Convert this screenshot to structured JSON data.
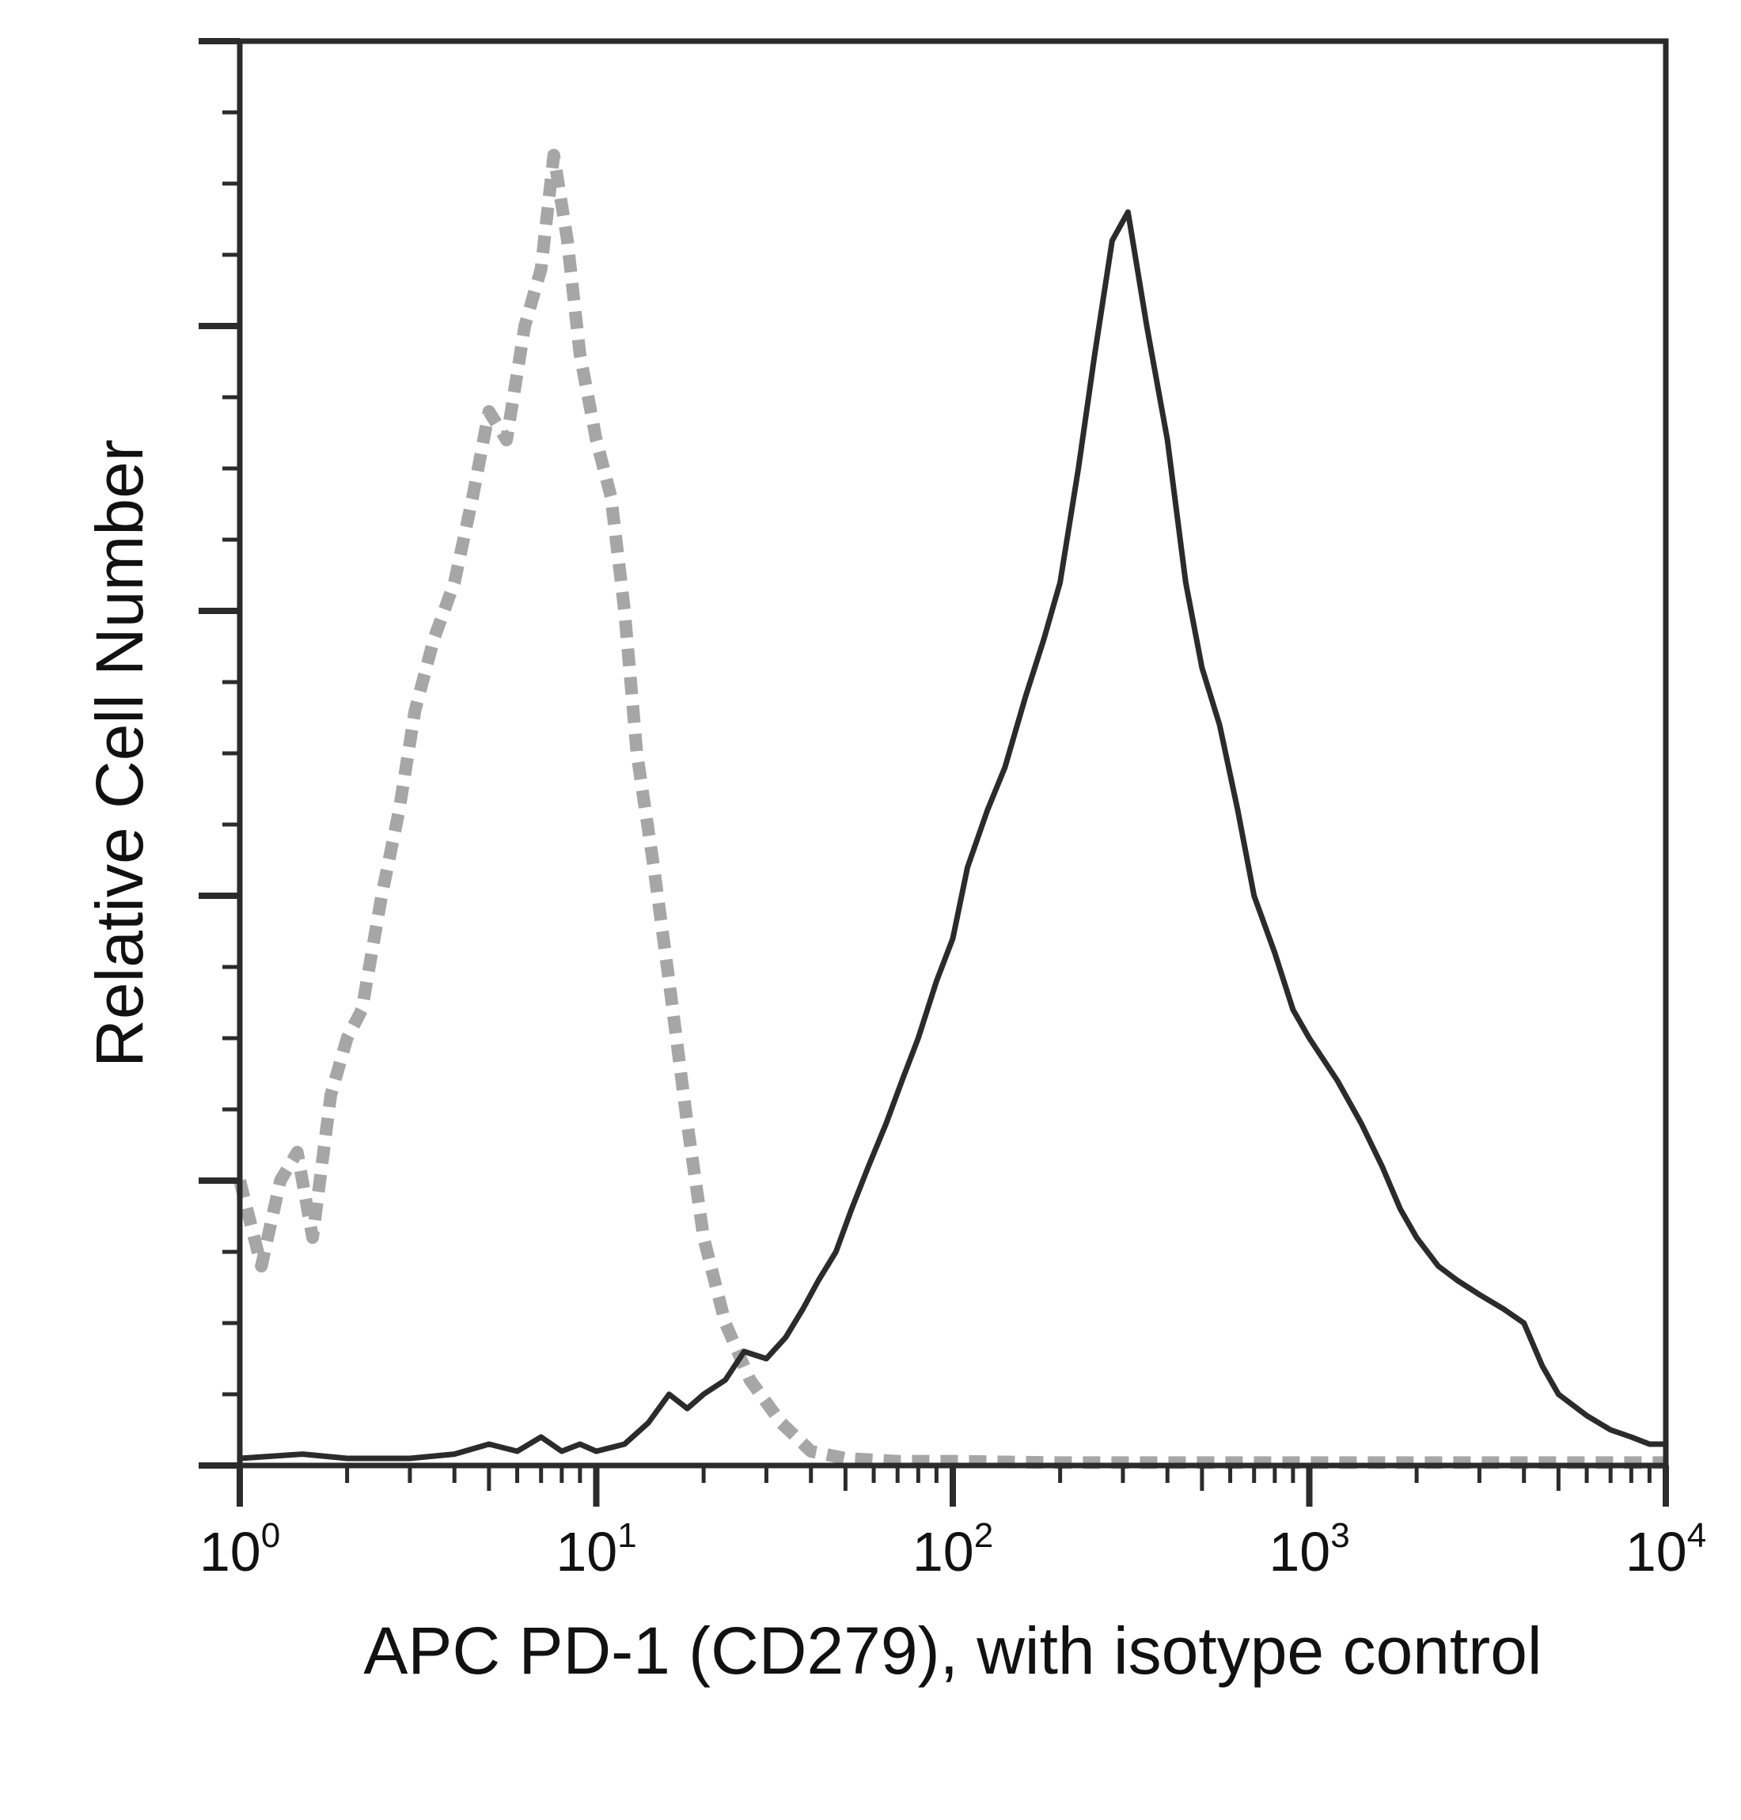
{
  "chart_data": {
    "type": "line",
    "xlabel": "APC PD-1 (CD279), with isotype control",
    "ylabel": "Relative Cell Number",
    "x_scale": "log",
    "xlim": [
      1,
      10000
    ],
    "ylim": [
      0,
      100
    ],
    "x_ticks": [
      {
        "base": "10",
        "exp": "0",
        "value": 1
      },
      {
        "base": "10",
        "exp": "1",
        "value": 10
      },
      {
        "base": "10",
        "exp": "2",
        "value": 100
      },
      {
        "base": "10",
        "exp": "3",
        "value": 1000
      },
      {
        "base": "10",
        "exp": "4",
        "value": 10000
      }
    ],
    "y_major_ticks": [
      0,
      20,
      40,
      60,
      80,
      100
    ],
    "grid": false,
    "series": [
      {
        "style": "dashed",
        "color": "#a6a6a6",
        "x": [
          1.0,
          1.15,
          1.3,
          1.45,
          1.6,
          1.8,
          2.0,
          2.2,
          2.5,
          2.8,
          3.1,
          3.5,
          4.0,
          4.5,
          5.0,
          5.6,
          6.3,
          7.0,
          7.6,
          8.3,
          9.0,
          10.0,
          11.0,
          12.0,
          13.0,
          14.5,
          16.0,
          18.0,
          20.0,
          23.0,
          27.0,
          33.0,
          40.0,
          50.0,
          70.0,
          100.0,
          200.0,
          500.0,
          1000.0,
          3000.0,
          10000.0
        ],
        "values": [
          20,
          14,
          20,
          22,
          16,
          26,
          30,
          32,
          40,
          46,
          53,
          58,
          62,
          68,
          74,
          72,
          80,
          84,
          92,
          86,
          78,
          72,
          68,
          60,
          50,
          42,
          34,
          24,
          16,
          10,
          6,
          3,
          1,
          0.5,
          0.3,
          0.3,
          0.2,
          0.2,
          0.2,
          0.2,
          0.2
        ]
      },
      {
        "style": "solid",
        "color": "#2b2b2b",
        "x": [
          1.0,
          1.5,
          2.0,
          3.0,
          4.0,
          5.0,
          6.0,
          7.0,
          8.0,
          9.0,
          10.0,
          12.0,
          14.0,
          16.0,
          18.0,
          20.0,
          23.0,
          26.0,
          30.0,
          34.0,
          38.0,
          42.0,
          47.0,
          52.0,
          58.0,
          65.0,
          72.0,
          80.0,
          90.0,
          100.0,
          110.0,
          125.0,
          140.0,
          160.0,
          180.0,
          200.0,
          225.0,
          250.0,
          280.0,
          310.0,
          350.0,
          400.0,
          450.0,
          500.0,
          560.0,
          630.0,
          700.0,
          800.0,
          900.0,
          1000.0,
          1200.0,
          1400.0,
          1600.0,
          1800.0,
          2000.0,
          2300.0,
          2600.0,
          3000.0,
          3500.0,
          4000.0,
          4500.0,
          5000.0,
          6000.0,
          7000.0,
          8000.0,
          9000.0,
          10000.0
        ],
        "values": [
          0.5,
          0.8,
          0.5,
          0.5,
          0.8,
          1.5,
          1.0,
          2.0,
          1.0,
          1.5,
          1.0,
          1.5,
          3.0,
          5.0,
          4.0,
          5.0,
          6.0,
          8.0,
          7.5,
          9.0,
          11.0,
          13.0,
          15.0,
          18.0,
          21.0,
          24.0,
          27.0,
          30.0,
          34.0,
          37.0,
          42.0,
          46.0,
          49.0,
          54.0,
          58.0,
          62.0,
          70.0,
          78.0,
          86.0,
          88.0,
          80.0,
          72.0,
          62.0,
          56.0,
          52.0,
          46.0,
          40.0,
          36.0,
          32.0,
          30.0,
          27.0,
          24.0,
          21.0,
          18.0,
          16.0,
          14.0,
          13.0,
          12.0,
          11.0,
          10.0,
          7.0,
          5.0,
          3.5,
          2.5,
          2.0,
          1.5,
          1.5
        ]
      }
    ]
  }
}
